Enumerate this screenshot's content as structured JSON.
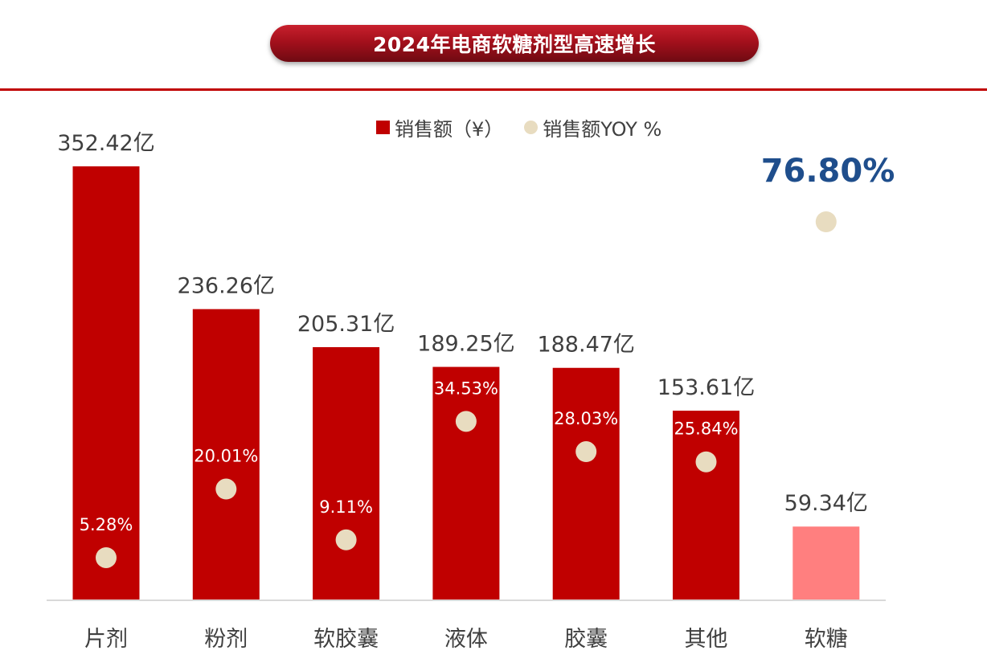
{
  "header": {
    "title": "2024年电商软糖剂型高速增长"
  },
  "legend": {
    "bar_label": "销售额（¥）",
    "dot_label": "销售额YOY %"
  },
  "highlight_yoy": "76.80%",
  "colors": {
    "bar": "#c00000",
    "bar_highlight": "#ff7f7f",
    "dot": "#e8dcc0",
    "highlight_text": "#1f4e8c"
  },
  "chart_data": {
    "type": "bar",
    "categories": [
      "片剂",
      "粉剂",
      "软胶囊",
      "液体",
      "胶囊",
      "其他",
      "软糖"
    ],
    "series": [
      {
        "name": "销售额（¥）",
        "values": [
          352.42,
          236.26,
          205.31,
          189.25,
          188.47,
          153.61,
          59.34
        ],
        "labels": [
          "352.42亿",
          "236.26亿",
          "205.31亿",
          "189.25亿",
          "188.47亿",
          "153.61亿",
          "59.34亿"
        ]
      },
      {
        "name": "销售额YOY %",
        "values": [
          5.28,
          20.01,
          9.11,
          34.53,
          28.03,
          25.84,
          76.8
        ],
        "labels": [
          "5.28%",
          "20.01%",
          "9.11%",
          "34.53%",
          "28.03%",
          "25.84%",
          "76.80%"
        ]
      }
    ],
    "highlight_category": "软糖"
  }
}
